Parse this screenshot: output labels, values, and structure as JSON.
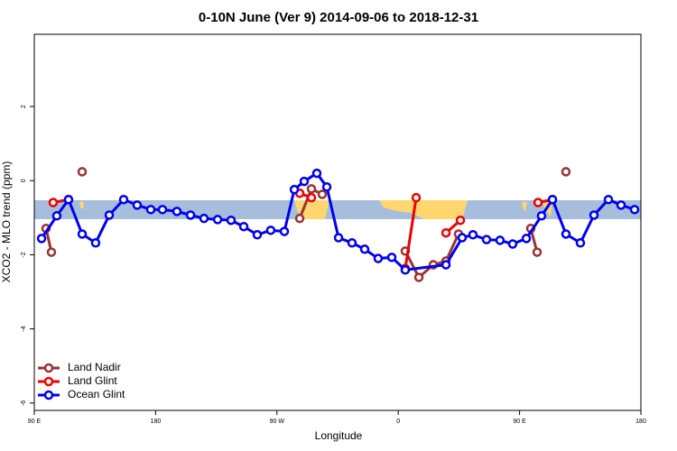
{
  "chart_data": {
    "type": "line",
    "title": "0-10N June (Ver 9)   2014-09-06 to 2018-12-31",
    "x_label": "Longitude",
    "y_label": "XCO2 - MLO trend (ppm)",
    "xlim": [
      90,
      540
    ],
    "xticks": [
      {
        "value": 90,
        "label": "90 E"
      },
      {
        "value": 180,
        "label": "180"
      },
      {
        "value": 270,
        "label": "90 W"
      },
      {
        "value": 360,
        "label": "0"
      },
      {
        "value": 450,
        "label": "90 E"
      },
      {
        "value": 540,
        "label": "180"
      }
    ],
    "ylim": [
      -6.2,
      3.95
    ],
    "yticks": [
      -6,
      -4,
      -2,
      0,
      2
    ],
    "legend": "bottom-left",
    "series": [
      {
        "name": "Land Nadir",
        "color": "#993333",
        "x": [
          98.7,
          102.7,
          null,
          125.5,
          null,
          286.9,
          295.6,
          303.6,
          null,
          365.2,
          375.3,
          386.0,
          395.4,
          404.7,
          null,
          458.3,
          463.0,
          null,
          484.4
        ],
        "values": [
          -1.29,
          -1.93,
          null,
          0.24,
          null,
          -1.02,
          -0.22,
          -0.37,
          null,
          -1.9,
          -2.61,
          -2.27,
          -2.17,
          -1.44,
          null,
          -1.29,
          -1.93,
          null,
          0.24
        ]
      },
      {
        "name": "Land Glint",
        "color": "#ee0000",
        "x": [
          104.0,
          115.4,
          null,
          286.9,
          295.6,
          null,
          365.2,
          373.3,
          null,
          395.4,
          406.1,
          null,
          463.7,
          474.4
        ],
        "values": [
          -0.59,
          -0.51,
          null,
          -0.34,
          -0.46,
          null,
          -2.37,
          -0.46,
          null,
          -1.41,
          -1.07,
          null,
          -0.59,
          -0.51
        ]
      },
      {
        "name": "Ocean Glint",
        "color": "#0000ee",
        "x": [
          95.4,
          106.7,
          115.4,
          125.5,
          135.5,
          145.6,
          156.3,
          166.3,
          176.4,
          185.1,
          195.8,
          205.9,
          215.9,
          226.0,
          236.0,
          245.4,
          255.4,
          265.4,
          275.5,
          282.9,
          290.2,
          299.6,
          307.0,
          315.7,
          325.7,
          335.1,
          345.1,
          355.2,
          365.2,
          395.4,
          407.4,
          415.4,
          425.5,
          435.5,
          444.9,
          455.0,
          466.3,
          474.4,
          484.4,
          495.1,
          505.2,
          515.9,
          525.3,
          535.3
        ],
        "values": [
          -1.56,
          -0.95,
          -0.51,
          -1.44,
          -1.68,
          -0.93,
          -0.51,
          -0.66,
          -0.78,
          -0.78,
          -0.83,
          -0.93,
          -1.02,
          -1.05,
          -1.07,
          -1.24,
          -1.46,
          -1.34,
          -1.37,
          -0.24,
          -0.02,
          0.2,
          -0.17,
          -1.54,
          -1.68,
          -1.85,
          -2.1,
          -2.07,
          -2.41,
          -2.27,
          -1.54,
          -1.46,
          -1.59,
          -1.61,
          -1.71,
          -1.56,
          -0.95,
          -0.51,
          -1.44,
          -1.68,
          -0.93,
          -0.51,
          -0.66,
          -0.78
        ]
      }
    ]
  }
}
